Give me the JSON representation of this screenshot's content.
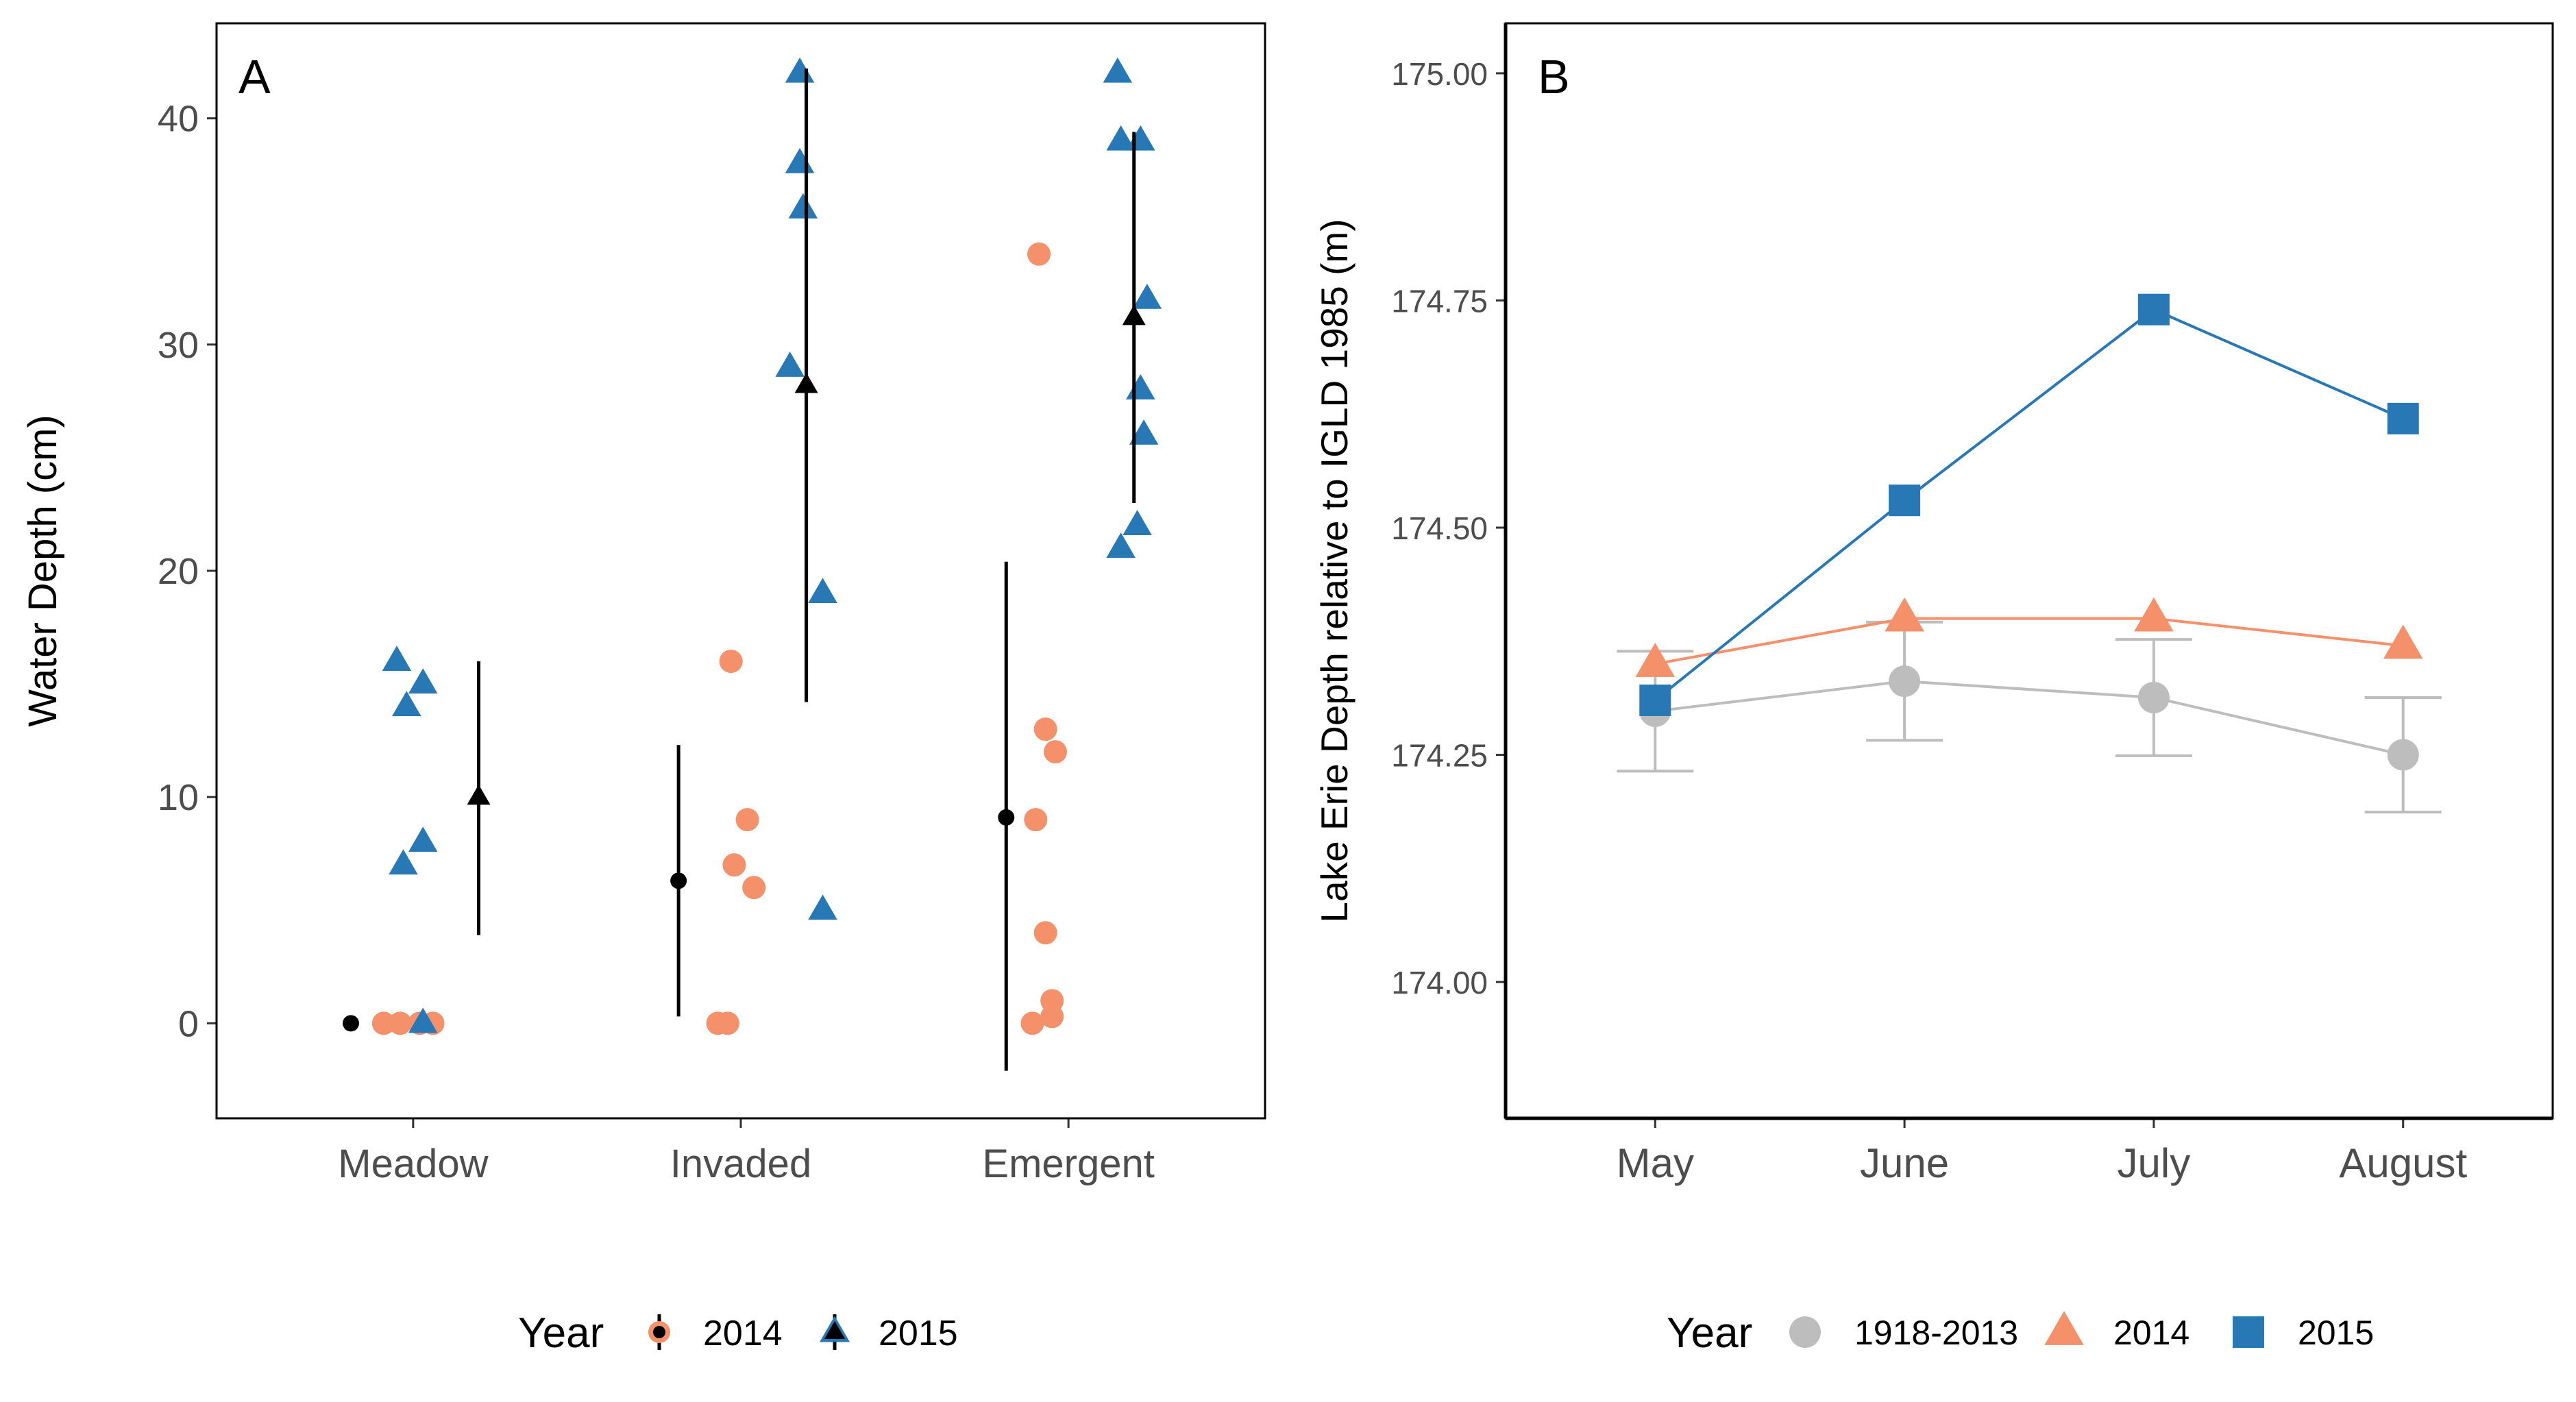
{
  "colors": {
    "y2014": "#F4916A",
    "y2015": "#2878B5",
    "historic": "#BDBDBD",
    "summary": "#000000"
  },
  "legend_a": {
    "title": "Year",
    "items": [
      {
        "label": "2014",
        "shape": "circle"
      },
      {
        "label": "2015",
        "shape": "triangle"
      }
    ]
  },
  "legend_b": {
    "title": "Year",
    "items": [
      {
        "label": "1918-2013",
        "shape": "circle",
        "color": "#BDBDBD"
      },
      {
        "label": "2014",
        "shape": "triangle",
        "color": "#F4916A"
      },
      {
        "label": "2015",
        "shape": "square",
        "color": "#2878B5"
      }
    ]
  },
  "chart_data": [
    {
      "panel": "A",
      "type": "scatter",
      "title": "",
      "xlabel": "",
      "ylabel": "Water Depth (cm)",
      "categories": [
        "Meadow",
        "Invaded",
        "Emergent"
      ],
      "ylim": [
        -4.2,
        44.2
      ],
      "yticks": [
        0,
        10,
        20,
        30,
        40
      ],
      "y_tick_labels": [
        "0",
        "10",
        "20",
        "30",
        "40"
      ],
      "grid": false,
      "legend_position": "bottom",
      "series": [
        {
          "name": "2014",
          "shape": "circle",
          "points": [
            {
              "category": "Meadow",
              "jitter": -0.09,
              "y": 0
            },
            {
              "category": "Meadow",
              "jitter": -0.04,
              "y": 0
            },
            {
              "category": "Meadow",
              "jitter": 0.02,
              "y": 0
            },
            {
              "category": "Meadow",
              "jitter": 0.06,
              "y": 0
            },
            {
              "category": "Invaded",
              "jitter": -0.03,
              "y": 16
            },
            {
              "category": "Invaded",
              "jitter": 0.02,
              "y": 9
            },
            {
              "category": "Invaded",
              "jitter": -0.02,
              "y": 7
            },
            {
              "category": "Invaded",
              "jitter": 0.04,
              "y": 6
            },
            {
              "category": "Invaded",
              "jitter": -0.07,
              "y": 0
            },
            {
              "category": "Invaded",
              "jitter": -0.04,
              "y": 0
            },
            {
              "category": "Emergent",
              "jitter": -0.09,
              "y": 34
            },
            {
              "category": "Emergent",
              "jitter": -0.07,
              "y": 13
            },
            {
              "category": "Emergent",
              "jitter": -0.04,
              "y": 12
            },
            {
              "category": "Emergent",
              "jitter": -0.1,
              "y": 9
            },
            {
              "category": "Emergent",
              "jitter": -0.07,
              "y": 4
            },
            {
              "category": "Emergent",
              "jitter": -0.05,
              "y": 1
            },
            {
              "category": "Emergent",
              "jitter": -0.05,
              "y": 0.3
            },
            {
              "category": "Emergent",
              "jitter": -0.11,
              "y": 0
            }
          ],
          "summary": [
            {
              "category": "Meadow",
              "mean": 0,
              "lower": 0,
              "upper": 0
            },
            {
              "category": "Invaded",
              "mean": 6.3,
              "lower": 0.3,
              "upper": 12.3
            },
            {
              "category": "Emergent",
              "mean": 9.1,
              "lower": -2.1,
              "upper": 20.4
            }
          ]
        },
        {
          "name": "2015",
          "shape": "triangle",
          "points": [
            {
              "category": "Meadow",
              "jitter": -0.05,
              "y": 16
            },
            {
              "category": "Meadow",
              "jitter": 0.03,
              "y": 15
            },
            {
              "category": "Meadow",
              "jitter": -0.02,
              "y": 14
            },
            {
              "category": "Meadow",
              "jitter": 0.03,
              "y": 8
            },
            {
              "category": "Meadow",
              "jitter": -0.03,
              "y": 7
            },
            {
              "category": "Meadow",
              "jitter": 0.03,
              "y": 0
            },
            {
              "category": "Invaded",
              "jitter": 0.18,
              "y": 42
            },
            {
              "category": "Invaded",
              "jitter": 0.18,
              "y": 38
            },
            {
              "category": "Invaded",
              "jitter": 0.19,
              "y": 36
            },
            {
              "category": "Invaded",
              "jitter": 0.15,
              "y": 29
            },
            {
              "category": "Invaded",
              "jitter": 0.25,
              "y": 19
            },
            {
              "category": "Invaded",
              "jitter": 0.25,
              "y": 5
            },
            {
              "category": "Emergent",
              "jitter": 0.15,
              "y": 42
            },
            {
              "category": "Emergent",
              "jitter": 0.16,
              "y": 39
            },
            {
              "category": "Emergent",
              "jitter": 0.22,
              "y": 39
            },
            {
              "category": "Emergent",
              "jitter": 0.24,
              "y": 32
            },
            {
              "category": "Emergent",
              "jitter": 0.22,
              "y": 28
            },
            {
              "category": "Emergent",
              "jitter": 0.23,
              "y": 26
            },
            {
              "category": "Emergent",
              "jitter": 0.21,
              "y": 22
            },
            {
              "category": "Emergent",
              "jitter": 0.16,
              "y": 21
            }
          ],
          "summary": [
            {
              "category": "Meadow",
              "mean": 10,
              "lower": 3.9,
              "upper": 16
            },
            {
              "category": "Invaded",
              "mean": 28.2,
              "lower": 14.2,
              "upper": 42.2
            },
            {
              "category": "Emergent",
              "mean": 31.2,
              "lower": 23,
              "upper": 39.4
            }
          ]
        }
      ],
      "summary_offsets": {
        "2014": -0.19,
        "2015": 0.2
      }
    },
    {
      "panel": "B",
      "type": "line",
      "title": "",
      "xlabel": "",
      "ylabel": "Lake Erie Depth relative to IGLD 1985 (m)",
      "categories": [
        "May",
        "June",
        "July",
        "August"
      ],
      "ylim": [
        173.85,
        175.055
      ],
      "yticks": [
        174.0,
        174.25,
        174.5,
        174.75,
        175.0
      ],
      "y_tick_labels": [
        "174.00",
        "174.25",
        "174.50",
        "174.75",
        "175.00"
      ],
      "grid": false,
      "legend_position": "bottom",
      "series": [
        {
          "name": "1918-2013",
          "shape": "circle",
          "values": [
            174.298,
            174.331,
            174.313,
            174.25
          ],
          "error_lower": [
            174.232,
            174.266,
            174.249,
            174.187
          ],
          "error_upper": [
            174.364,
            174.396,
            174.377,
            174.313
          ]
        },
        {
          "name": "2014",
          "shape": "triangle",
          "values": [
            174.35,
            174.4,
            174.4,
            174.37
          ]
        },
        {
          "name": "2015",
          "shape": "square",
          "values": [
            174.31,
            174.53,
            174.74,
            174.62
          ]
        }
      ]
    }
  ],
  "panel_tags": {
    "a": "A",
    "b": "B"
  }
}
